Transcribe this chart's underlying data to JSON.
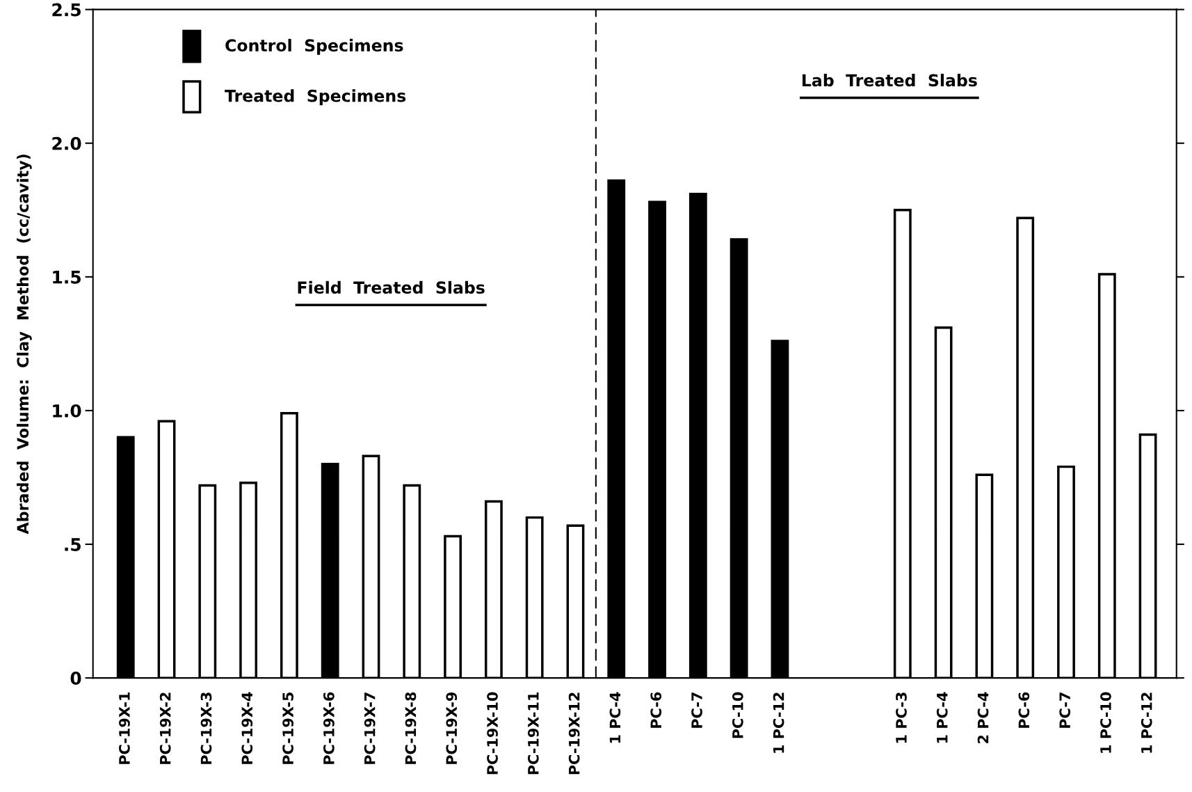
{
  "chart_data": {
    "type": "bar",
    "ylabel": "Abraded  Volume:  Clay  Method  (cc/cavity)",
    "categories": [
      "PC-19X-1",
      "PC-19X-2",
      "PC-19X-3",
      "PC-19X-4",
      "PC-19X-5",
      "PC-19X-6",
      "PC-19X-7",
      "PC-19X-8",
      "PC-19X-9",
      "PC-19X-10",
      "PC-19X-11",
      "PC-19X-12",
      "1 PC-4",
      "PC-6",
      "PC-7",
      "PC-10",
      "1 PC-12",
      null,
      null,
      "1 PC-3",
      "1 PC-4",
      "2 PC-4",
      "PC-6",
      "PC-7",
      "1 PC-10",
      "1 PC-12"
    ],
    "series": [
      {
        "name": "Control  Specimens",
        "color": "#000000",
        "values": [
          0.9,
          null,
          null,
          null,
          null,
          0.8,
          null,
          null,
          null,
          null,
          null,
          null,
          1.86,
          1.78,
          1.81,
          1.64,
          1.26,
          null,
          null,
          null,
          null,
          null,
          null,
          null,
          null,
          null
        ]
      },
      {
        "name": "Treated  Specimens",
        "color": "#ffffff",
        "values": [
          null,
          0.96,
          0.72,
          0.73,
          0.99,
          null,
          0.83,
          0.72,
          0.53,
          0.66,
          0.6,
          0.57,
          null,
          null,
          null,
          null,
          null,
          null,
          null,
          1.75,
          1.31,
          0.76,
          1.72,
          0.79,
          1.51,
          0.91
        ]
      }
    ],
    "ylim": [
      0,
      2.5
    ],
    "yticks": [
      0,
      {
        "value": 0.5,
        "label": ".5"
      },
      {
        "value": 1,
        "label": "1.0"
      },
      1.5,
      {
        "value": 2,
        "label": "2.0"
      },
      2.5
    ],
    "annotations": [
      "Field  Treated  Slabs",
      "Lab  Treated  Slabs"
    ],
    "legend": "top left",
    "grid": false
  }
}
